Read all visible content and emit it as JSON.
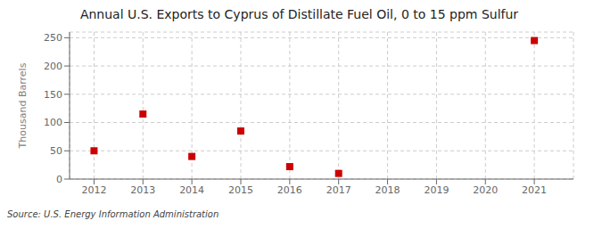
{
  "chart_data": {
    "type": "scatter",
    "title": "Annual U.S. Exports to Cyprus of Distillate Fuel Oil, 0 to 15 ppm Sulfur",
    "ylabel": "Thousand Barrels",
    "annotations": [
      "Source: U.S. Energy Information Administration"
    ],
    "x": [
      2012,
      2013,
      2014,
      2015,
      2016,
      2017,
      2021
    ],
    "values": [
      50,
      115,
      40,
      85,
      22,
      10,
      245
    ],
    "xlim": [
      2011.5,
      2021.8
    ],
    "ylim": [
      0,
      260
    ],
    "xticks": [
      2012,
      2013,
      2014,
      2015,
      2016,
      2017,
      2018,
      2019,
      2020,
      2021
    ],
    "yticks": [
      0,
      50,
      100,
      150,
      200,
      250
    ],
    "color": "#cc0000",
    "marker": "square",
    "grid": true
  }
}
